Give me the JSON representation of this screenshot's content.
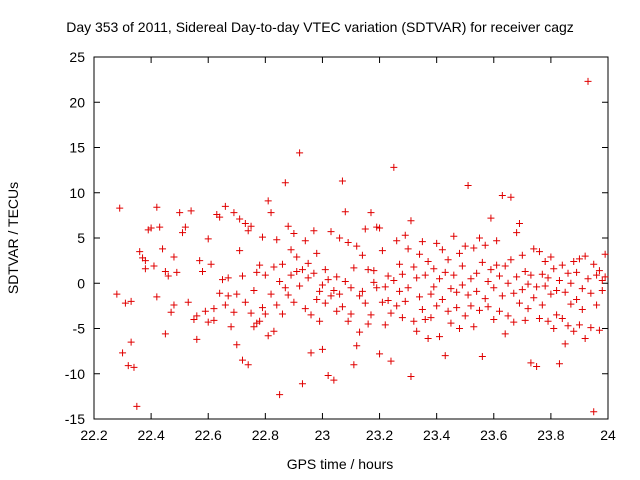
{
  "chart_data": {
    "type": "scatter",
    "title": "Day 353 of 2011, Sidereal Day-to-day VTEC variation (SDTVAR) for receiver cagz",
    "xlabel": "GPS time / hours",
    "ylabel": "SDTVAR / TECUs",
    "xlim": [
      22.2,
      24
    ],
    "ylim": [
      -15,
      25
    ],
    "xticks": [
      "22.2",
      "22.4",
      "22.6",
      "22.8",
      "23",
      "23.2",
      "23.4",
      "23.6",
      "23.8",
      "24"
    ],
    "yticks": [
      "25",
      "20",
      "15",
      "10",
      "5",
      "0",
      "-5",
      "-10",
      "-15"
    ],
    "series": [
      {
        "name": "SDTVAR",
        "color": "#e00000",
        "marker": "plus",
        "points": [
          [
            22.29,
            8.3
          ],
          [
            22.28,
            -1.2
          ],
          [
            22.3,
            -7.7
          ],
          [
            22.31,
            -2.2
          ],
          [
            22.32,
            -9.1
          ],
          [
            22.33,
            -2.0
          ],
          [
            22.33,
            -6.5
          ],
          [
            22.34,
            -9.3
          ],
          [
            22.35,
            -13.6
          ],
          [
            22.36,
            3.5
          ],
          [
            22.37,
            2.8
          ],
          [
            22.38,
            2.5
          ],
          [
            22.38,
            1.6
          ],
          [
            22.39,
            5.9
          ],
          [
            22.4,
            6.1
          ],
          [
            22.41,
            1.9
          ],
          [
            22.42,
            8.4
          ],
          [
            22.42,
            -1.5
          ],
          [
            22.43,
            6.2
          ],
          [
            22.44,
            3.8
          ],
          [
            22.45,
            -5.6
          ],
          [
            22.45,
            1.3
          ],
          [
            22.46,
            0.8
          ],
          [
            22.47,
            -3.2
          ],
          [
            22.48,
            -2.4
          ],
          [
            22.48,
            2.9
          ],
          [
            22.49,
            1.2
          ],
          [
            22.5,
            7.8
          ],
          [
            22.51,
            5.6
          ],
          [
            22.52,
            6.2
          ],
          [
            22.53,
            -2.1
          ],
          [
            22.54,
            8.0
          ],
          [
            22.55,
            -4.0
          ],
          [
            22.56,
            -6.2
          ],
          [
            22.56,
            -3.6
          ],
          [
            22.57,
            2.5
          ],
          [
            22.58,
            1.3
          ],
          [
            22.59,
            -3.1
          ],
          [
            22.6,
            -4.3
          ],
          [
            22.6,
            4.9
          ],
          [
            22.61,
            2.1
          ],
          [
            22.62,
            -4.1
          ],
          [
            22.62,
            -2.8
          ],
          [
            22.63,
            7.6
          ],
          [
            22.64,
            7.3
          ],
          [
            22.64,
            -1.1
          ],
          [
            22.65,
            0.4
          ],
          [
            22.66,
            8.5
          ],
          [
            22.66,
            -2.4
          ],
          [
            22.67,
            -1.4
          ],
          [
            22.67,
            0.6
          ],
          [
            22.68,
            -4.8
          ],
          [
            22.69,
            -3.2
          ],
          [
            22.69,
            7.8
          ],
          [
            22.7,
            -6.8
          ],
          [
            22.7,
            -1.2
          ],
          [
            22.71,
            7.1
          ],
          [
            22.71,
            3.6
          ],
          [
            22.72,
            -8.5
          ],
          [
            22.72,
            0.8
          ],
          [
            22.73,
            6.6
          ],
          [
            22.73,
            -2.1
          ],
          [
            22.74,
            5.8
          ],
          [
            22.74,
            -9.0
          ],
          [
            22.75,
            6.3
          ],
          [
            22.75,
            -3.3
          ],
          [
            22.76,
            -4.8
          ],
          [
            22.76,
            -0.8
          ],
          [
            22.77,
            -4.4
          ],
          [
            22.77,
            1.2
          ],
          [
            22.78,
            -4.2
          ],
          [
            22.78,
            2.0
          ],
          [
            22.79,
            -2.7
          ],
          [
            22.79,
            5.1
          ],
          [
            22.8,
            -3.4
          ],
          [
            22.8,
            0.9
          ],
          [
            22.81,
            9.1
          ],
          [
            22.81,
            -5.8
          ],
          [
            22.82,
            7.8
          ],
          [
            22.82,
            -1.2
          ],
          [
            22.83,
            1.8
          ],
          [
            22.83,
            -5.3
          ],
          [
            22.84,
            4.8
          ],
          [
            22.84,
            -2.4
          ],
          [
            22.85,
            -12.3
          ],
          [
            22.85,
            0.2
          ],
          [
            22.86,
            2.1
          ],
          [
            22.86,
            -3.4
          ],
          [
            22.87,
            11.1
          ],
          [
            22.87,
            -0.5
          ],
          [
            22.88,
            6.3
          ],
          [
            22.88,
            -1.3
          ],
          [
            22.89,
            3.7
          ],
          [
            22.89,
            0.9
          ],
          [
            22.9,
            5.5
          ],
          [
            22.9,
            -2.1
          ],
          [
            22.91,
            1.3
          ],
          [
            22.91,
            2.9
          ],
          [
            22.92,
            14.4
          ],
          [
            22.92,
            -0.3
          ],
          [
            22.93,
            -11.1
          ],
          [
            22.93,
            1.5
          ],
          [
            22.94,
            4.7
          ],
          [
            22.94,
            -2.8
          ],
          [
            22.95,
            0.6
          ],
          [
            22.95,
            2.2
          ],
          [
            22.96,
            -7.7
          ],
          [
            22.96,
            -3.5
          ],
          [
            22.97,
            5.8
          ],
          [
            22.97,
            1.1
          ],
          [
            22.98,
            -1.8
          ],
          [
            22.98,
            3.3
          ],
          [
            22.99,
            -0.9
          ],
          [
            22.99,
            -4.2
          ],
          [
            23.0,
            -7.3
          ],
          [
            23.0,
            -0.2
          ],
          [
            23.01,
            1.5
          ],
          [
            23.01,
            -2.2
          ],
          [
            23.02,
            -10.2
          ],
          [
            23.02,
            0.4
          ],
          [
            23.03,
            -1.4
          ],
          [
            23.03,
            5.7
          ],
          [
            23.04,
            -10.7
          ],
          [
            23.04,
            -0.8
          ],
          [
            23.05,
            0.7
          ],
          [
            23.05,
            -3.1
          ],
          [
            23.06,
            5.0
          ],
          [
            23.06,
            -1.2
          ],
          [
            23.07,
            11.3
          ],
          [
            23.07,
            -2.6
          ],
          [
            23.08,
            7.9
          ],
          [
            23.08,
            0.2
          ],
          [
            23.09,
            -4.2
          ],
          [
            23.09,
            4.5
          ],
          [
            23.1,
            -3.4
          ],
          [
            23.1,
            -0.5
          ],
          [
            23.11,
            -9.0
          ],
          [
            23.11,
            1.7
          ],
          [
            23.12,
            -6.9
          ],
          [
            23.12,
            4.1
          ],
          [
            23.13,
            -1.4
          ],
          [
            23.13,
            -5.4
          ],
          [
            23.14,
            3.1
          ],
          [
            23.14,
            -0.9
          ],
          [
            23.15,
            6.0
          ],
          [
            23.15,
            -2.2
          ],
          [
            23.16,
            -4.5
          ],
          [
            23.16,
            1.5
          ],
          [
            23.17,
            7.8
          ],
          [
            23.17,
            -3.5
          ],
          [
            23.18,
            1.4
          ],
          [
            23.18,
            0.1
          ],
          [
            23.19,
            6.2
          ],
          [
            23.19,
            -0.5
          ],
          [
            23.2,
            -7.8
          ],
          [
            23.2,
            6.1
          ],
          [
            23.21,
            -2.1
          ],
          [
            23.21,
            3.6
          ],
          [
            23.22,
            -0.4
          ],
          [
            23.22,
            -4.6
          ],
          [
            23.23,
            0.8
          ],
          [
            23.23,
            -1.9
          ],
          [
            23.24,
            -8.6
          ],
          [
            23.24,
            -3.3
          ],
          [
            23.25,
            12.8
          ],
          [
            23.25,
            0.3
          ],
          [
            23.26,
            -2.5
          ],
          [
            23.26,
            4.7
          ],
          [
            23.27,
            -0.9
          ],
          [
            23.27,
            2.1
          ],
          [
            23.28,
            -3.8
          ],
          [
            23.28,
            1.0
          ],
          [
            23.29,
            5.3
          ],
          [
            23.29,
            -2.0
          ],
          [
            23.3,
            -0.5
          ],
          [
            23.3,
            3.8
          ],
          [
            23.31,
            -10.3
          ],
          [
            23.31,
            6.9
          ],
          [
            23.32,
            1.8
          ],
          [
            23.32,
            -4.2
          ],
          [
            23.33,
            0.6
          ],
          [
            23.33,
            -5.3
          ],
          [
            23.34,
            3.2
          ],
          [
            23.34,
            -1.5
          ],
          [
            23.35,
            4.6
          ],
          [
            23.35,
            -2.9
          ],
          [
            23.36,
            -4.0
          ],
          [
            23.36,
            0.9
          ],
          [
            23.37,
            -6.1
          ],
          [
            23.37,
            2.4
          ],
          [
            23.38,
            -1.2
          ],
          [
            23.38,
            -3.8
          ],
          [
            23.39,
            1.6
          ],
          [
            23.39,
            -0.4
          ],
          [
            23.4,
            4.4
          ],
          [
            23.4,
            -2.5
          ],
          [
            23.41,
            -5.9
          ],
          [
            23.41,
            0.5
          ],
          [
            23.42,
            3.7
          ],
          [
            23.42,
            -1.8
          ],
          [
            23.43,
            -8.0
          ],
          [
            23.43,
            1.2
          ],
          [
            23.44,
            -3.1
          ],
          [
            23.44,
            2.6
          ],
          [
            23.45,
            -0.6
          ],
          [
            23.45,
            -4.4
          ],
          [
            23.46,
            0.9
          ],
          [
            23.46,
            5.2
          ],
          [
            23.47,
            -2.7
          ],
          [
            23.47,
            -1.0
          ],
          [
            23.48,
            3.3
          ],
          [
            23.48,
            -5.0
          ],
          [
            23.49,
            1.9
          ],
          [
            23.49,
            -0.2
          ],
          [
            23.5,
            -3.6
          ],
          [
            23.5,
            4.1
          ],
          [
            23.51,
            10.8
          ],
          [
            23.51,
            -1.3
          ],
          [
            23.52,
            0.5
          ],
          [
            23.52,
            -2.5
          ],
          [
            23.53,
            3.9
          ],
          [
            23.53,
            -4.8
          ],
          [
            23.54,
            1.1
          ],
          [
            23.54,
            -0.9
          ],
          [
            23.55,
            5.0
          ],
          [
            23.55,
            -3.0
          ],
          [
            23.56,
            -8.1
          ],
          [
            23.56,
            2.3
          ],
          [
            23.57,
            -1.7
          ],
          [
            23.57,
            4.2
          ],
          [
            23.58,
            0.2
          ],
          [
            23.58,
            -2.6
          ],
          [
            23.59,
            7.2
          ],
          [
            23.59,
            1.5
          ],
          [
            23.6,
            -4.0
          ],
          [
            23.6,
            -0.5
          ],
          [
            23.61,
            4.7
          ],
          [
            23.61,
            2.0
          ],
          [
            23.62,
            -3.1
          ],
          [
            23.62,
            0.8
          ],
          [
            23.63,
            9.7
          ],
          [
            23.63,
            -1.4
          ],
          [
            23.64,
            -5.6
          ],
          [
            23.64,
            1.9
          ],
          [
            23.65,
            0.0
          ],
          [
            23.65,
            -3.6
          ],
          [
            23.66,
            9.5
          ],
          [
            23.66,
            2.6
          ],
          [
            23.67,
            -1.1
          ],
          [
            23.67,
            -4.3
          ],
          [
            23.68,
            5.6
          ],
          [
            23.68,
            0.7
          ],
          [
            23.69,
            6.6
          ],
          [
            23.69,
            -2.2
          ],
          [
            23.7,
            -0.7
          ],
          [
            23.7,
            3.1
          ],
          [
            23.71,
            -4.1
          ],
          [
            23.71,
            1.3
          ],
          [
            23.72,
            -0.1
          ],
          [
            23.72,
            -2.8
          ],
          [
            23.73,
            -8.8
          ],
          [
            23.73,
            0.9
          ],
          [
            23.74,
            3.8
          ],
          [
            23.74,
            -1.6
          ],
          [
            23.75,
            -9.2
          ],
          [
            23.75,
            -0.4
          ],
          [
            23.76,
            3.5
          ],
          [
            23.76,
            -3.9
          ],
          [
            23.77,
            1.0
          ],
          [
            23.77,
            -2.4
          ],
          [
            23.78,
            2.4
          ],
          [
            23.78,
            -0.3
          ],
          [
            23.79,
            -4.2
          ],
          [
            23.79,
            0.6
          ],
          [
            23.8,
            2.9
          ],
          [
            23.8,
            -1.2
          ],
          [
            23.81,
            -5.0
          ],
          [
            23.81,
            1.6
          ],
          [
            23.82,
            -0.8
          ],
          [
            23.82,
            -3.5
          ],
          [
            23.83,
            -8.9
          ],
          [
            23.83,
            0.3
          ],
          [
            23.84,
            -3.9
          ],
          [
            23.84,
            2.0
          ],
          [
            23.85,
            -6.7
          ],
          [
            23.85,
            -1.0
          ],
          [
            23.86,
            1.1
          ],
          [
            23.86,
            -4.7
          ],
          [
            23.87,
            -2.3
          ],
          [
            23.87,
            0.0
          ],
          [
            23.88,
            2.4
          ],
          [
            23.88,
            -5.3
          ],
          [
            23.89,
            -1.8
          ],
          [
            23.89,
            1.2
          ],
          [
            23.9,
            -4.6
          ],
          [
            23.9,
            2.7
          ],
          [
            23.91,
            -0.6
          ],
          [
            23.91,
            -2.9
          ],
          [
            23.92,
            3.0
          ],
          [
            23.92,
            -6.1
          ],
          [
            23.93,
            22.3
          ],
          [
            23.93,
            0.5
          ],
          [
            23.94,
            -1.1
          ],
          [
            23.94,
            -4.9
          ],
          [
            23.95,
            2.1
          ],
          [
            23.95,
            -14.2
          ],
          [
            23.96,
            0.9
          ],
          [
            23.96,
            -2.4
          ],
          [
            23.97,
            1.4
          ],
          [
            23.97,
            -5.2
          ],
          [
            23.98,
            0.3
          ],
          [
            23.98,
            -0.8
          ],
          [
            23.99,
            0.7
          ],
          [
            23.99,
            3.2
          ]
        ]
      }
    ]
  }
}
